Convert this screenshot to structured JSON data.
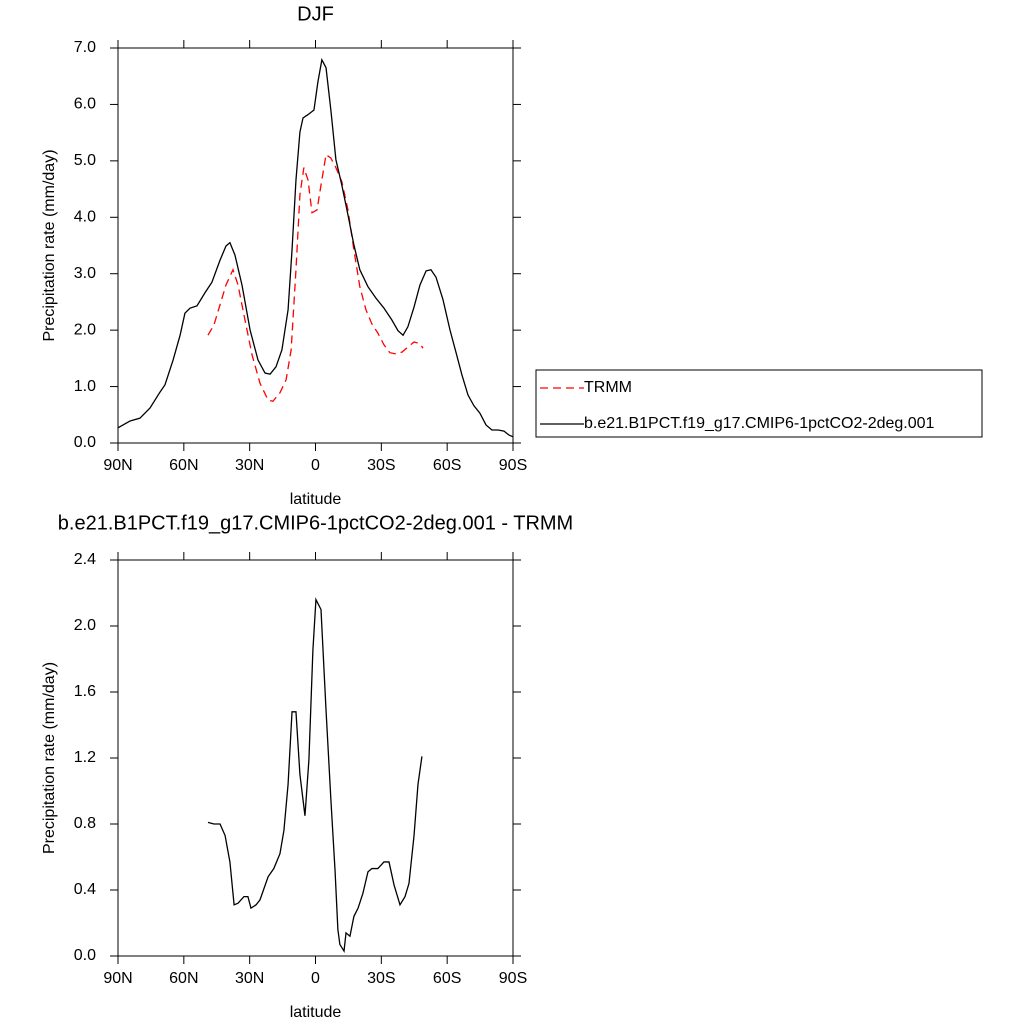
{
  "chart_data": [
    {
      "type": "line",
      "title": "DJF",
      "xlabel": "latitude",
      "ylabel": "Precipitation rate (mm/day)",
      "xlim": [
        90,
        -90
      ],
      "xticks": [
        {
          "value": 90,
          "label": "90N"
        },
        {
          "value": 60,
          "label": "60N"
        },
        {
          "value": 30,
          "label": "30N"
        },
        0,
        {
          "value": -30,
          "label": "30S"
        },
        {
          "value": -60,
          "label": "60S"
        },
        {
          "value": -90,
          "label": "90S"
        }
      ],
      "ylim": [
        0,
        7
      ],
      "yticks": [
        {
          "value": 0,
          "label": "0.0"
        },
        {
          "value": 1,
          "label": "1.0"
        },
        {
          "value": 2,
          "label": "2.0"
        },
        {
          "value": 3,
          "label": "3.0"
        },
        {
          "value": 4,
          "label": "4.0"
        },
        {
          "value": 5,
          "label": "5.0"
        },
        {
          "value": 6,
          "label": "6.0"
        },
        {
          "value": 7,
          "label": "7.0"
        }
      ],
      "legend": "right",
      "series": [
        {
          "name": "TRMM",
          "color": "#ff0000",
          "line_style": "dashed",
          "x": [
            49.0,
            46.3,
            43.5,
            40.8,
            37.6,
            35.3,
            32.6,
            28.9,
            25.3,
            21.6,
            19.4,
            16.2,
            13.4,
            11.1,
            8.9,
            7.1,
            5.3,
            3.4,
            1.6,
            -0.7,
            -2.5,
            -4.8,
            -7.0,
            -9.3,
            -12.0,
            -14.8,
            -17.5,
            -20.2,
            -23.0,
            -25.7,
            -28.4,
            -31.2,
            -33.9,
            -36.6,
            -39.4,
            -42.1,
            -44.9,
            -47.6,
            -49.0
          ],
          "values": [
            1.91,
            2.09,
            2.45,
            2.8,
            3.07,
            2.8,
            2.27,
            1.56,
            1.06,
            0.76,
            0.74,
            0.89,
            1.12,
            1.65,
            3.07,
            4.4,
            4.88,
            4.66,
            4.08,
            4.13,
            4.57,
            5.11,
            5.05,
            4.88,
            4.63,
            4.13,
            3.42,
            2.77,
            2.36,
            2.11,
            1.95,
            1.74,
            1.6,
            1.58,
            1.61,
            1.7,
            1.79,
            1.76,
            1.68
          ]
        },
        {
          "name": "b.e21.B1PCT.f19_g17.CMIP6-1pctCO2-2deg.001",
          "color": "#000000",
          "line_style": "solid",
          "x": [
            90,
            84.5,
            80,
            75.4,
            70.9,
            68.6,
            64.9,
            61.7,
            59.5,
            57.2,
            54.0,
            50.4,
            47.2,
            43.5,
            40.8,
            39.0,
            36.7,
            33.5,
            29.8,
            26.2,
            23.0,
            20.7,
            18.0,
            15.3,
            12.5,
            10.7,
            8.9,
            7.1,
            5.7,
            3.4,
            0.7,
            -1.1,
            -2.9,
            -4.8,
            -7.0,
            -9.3,
            -12.0,
            -14.8,
            -17.5,
            -20.2,
            -23.9,
            -27.5,
            -31.2,
            -34.8,
            -37.6,
            -39.9,
            -42.1,
            -44.9,
            -47.6,
            -50.4,
            -52.6,
            -54.9,
            -58.1,
            -61.3,
            -64.0,
            -66.7,
            -69.5,
            -72.2,
            -74.9,
            -77.7,
            -80.4,
            -83.2,
            -85.9,
            -88.2,
            -90
          ],
          "values": [
            0.27,
            0.39,
            0.44,
            0.62,
            0.9,
            1.03,
            1.47,
            1.91,
            2.3,
            2.39,
            2.43,
            2.66,
            2.85,
            3.24,
            3.49,
            3.55,
            3.33,
            2.8,
            2.0,
            1.47,
            1.24,
            1.22,
            1.35,
            1.65,
            2.36,
            3.42,
            4.66,
            5.51,
            5.76,
            5.82,
            5.9,
            6.4,
            6.79,
            6.65,
            5.9,
            5.02,
            4.57,
            4.04,
            3.51,
            3.07,
            2.77,
            2.57,
            2.39,
            2.18,
            1.99,
            1.91,
            2.06,
            2.41,
            2.8,
            3.05,
            3.07,
            2.94,
            2.54,
            2.0,
            1.61,
            1.21,
            0.85,
            0.66,
            0.53,
            0.32,
            0.23,
            0.23,
            0.21,
            0.14,
            0.11
          ]
        }
      ]
    },
    {
      "type": "line",
      "title": "b.e21.B1PCT.f19_g17.CMIP6-1pctCO2-2deg.001 - TRMM",
      "xlabel": "latitude",
      "ylabel": "Precipitation rate (mm/day)",
      "xlim": [
        90,
        -90
      ],
      "xticks": [
        {
          "value": 90,
          "label": "90N"
        },
        {
          "value": 60,
          "label": "60N"
        },
        {
          "value": 30,
          "label": "30N"
        },
        0,
        {
          "value": -30,
          "label": "30S"
        },
        {
          "value": -60,
          "label": "60S"
        },
        {
          "value": -90,
          "label": "90S"
        }
      ],
      "ylim": [
        0,
        2.4
      ],
      "yticks": [
        {
          "value": 0,
          "label": "0.0"
        },
        0.4,
        0.8,
        1.2,
        1.6,
        {
          "value": 2,
          "label": "2.0"
        },
        2.4
      ],
      "series": [
        {
          "color": "#000000",
          "line_style": "solid",
          "x": [
            49.0,
            46.3,
            43.5,
            41.2,
            39.0,
            37.1,
            35.3,
            32.6,
            30.8,
            29.4,
            27.1,
            25.3,
            21.6,
            19.0,
            16.2,
            14.4,
            12.5,
            10.7,
            8.9,
            7.1,
            4.8,
            3.0,
            1.2,
            -0.2,
            -2.5,
            -4.8,
            -7.0,
            -8.9,
            -10.2,
            -11.1,
            -13.0,
            -13.9,
            -15.7,
            -17.5,
            -19.4,
            -21.6,
            -23.9,
            -25.7,
            -28.4,
            -31.2,
            -33.5,
            -35.8,
            -38.5,
            -40.8,
            -42.6,
            -44.9,
            -46.7,
            -48.5
          ],
          "values": [
            0.81,
            0.8,
            0.8,
            0.73,
            0.57,
            0.31,
            0.32,
            0.36,
            0.36,
            0.29,
            0.31,
            0.34,
            0.48,
            0.53,
            0.62,
            0.76,
            1.04,
            1.48,
            1.48,
            1.1,
            0.85,
            1.19,
            1.85,
            2.16,
            2.1,
            1.49,
            0.95,
            0.52,
            0.16,
            0.07,
            0.03,
            0.14,
            0.12,
            0.24,
            0.29,
            0.38,
            0.51,
            0.53,
            0.53,
            0.57,
            0.57,
            0.43,
            0.31,
            0.36,
            0.44,
            0.73,
            1.04,
            1.21
          ]
        }
      ]
    }
  ]
}
